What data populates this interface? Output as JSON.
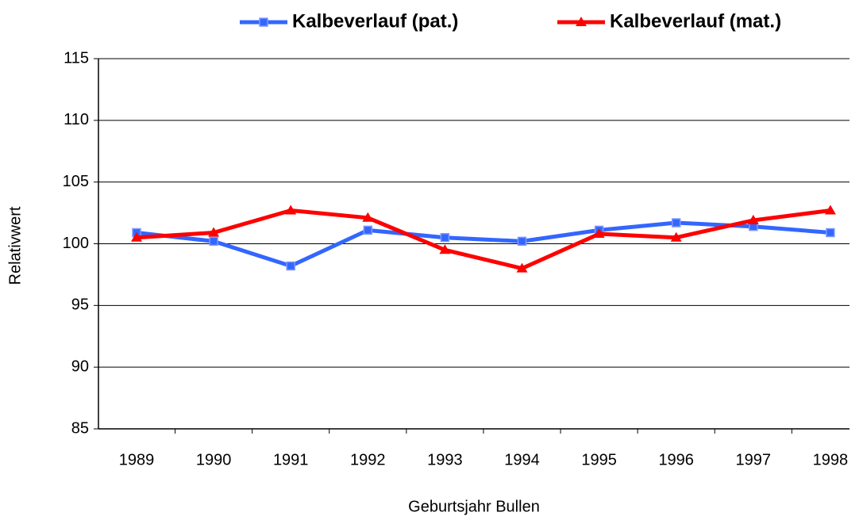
{
  "chart_data": {
    "type": "line",
    "x_label": "Geburtsjahr Bullen",
    "y_label": "Relativwert",
    "categories": [
      "1989",
      "1990",
      "1991",
      "1992",
      "1993",
      "1994",
      "1995",
      "1996",
      "1997",
      "1998"
    ],
    "series": [
      {
        "name": "Kalbeverlauf (pat.)",
        "color": "#3366ff",
        "marker": "square",
        "values": [
          100.9,
          100.2,
          98.2,
          101.1,
          100.5,
          100.2,
          101.1,
          101.7,
          101.4,
          100.9
        ]
      },
      {
        "name": "Kalbeverlauf (mat.)",
        "color": "#ff0000",
        "marker": "triangle",
        "values": [
          100.5,
          100.9,
          102.7,
          102.1,
          99.5,
          98.0,
          100.8,
          100.5,
          101.9,
          102.7
        ]
      }
    ],
    "ylim": [
      85,
      115
    ],
    "yticks": [
      85,
      90,
      95,
      100,
      105,
      110,
      115
    ],
    "grid": true
  }
}
